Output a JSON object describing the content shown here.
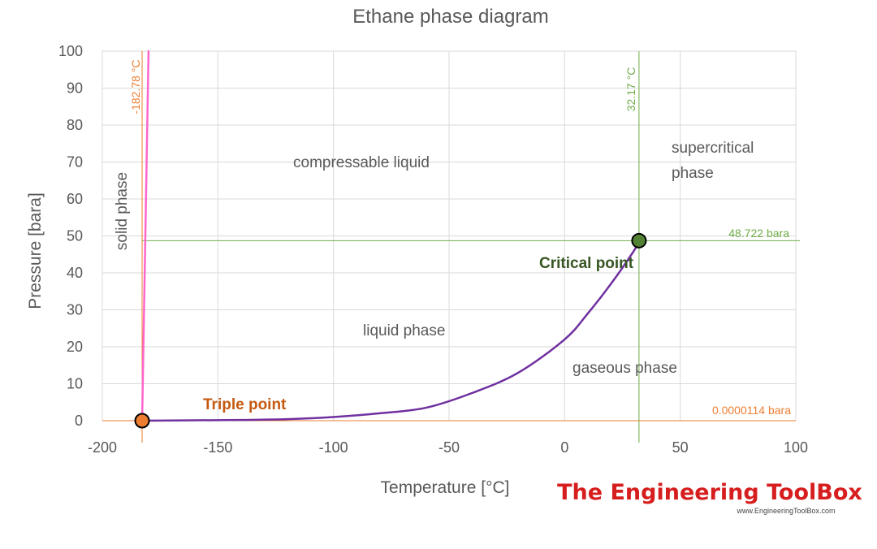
{
  "chart_data": {
    "type": "line",
    "title": "Ethane phase diagram",
    "xlabel": "Temperature [°C]",
    "ylabel": "Pressure [bara]",
    "xlim": [
      -200,
      100
    ],
    "ylim": [
      0,
      100
    ],
    "grid": true,
    "x_ticks": [
      -200,
      -150,
      -100,
      -50,
      0,
      50,
      100
    ],
    "y_ticks": [
      0,
      10,
      20,
      30,
      40,
      50,
      60,
      70,
      80,
      90,
      100
    ],
    "x_tick_labels": [
      "-200",
      "-150",
      "-100",
      "-50",
      "0",
      "50",
      "100"
    ],
    "y_tick_labels": [
      "0",
      "10",
      "20",
      "30",
      "40",
      "50",
      "60",
      "70",
      "80",
      "90",
      "100"
    ],
    "series": [
      {
        "color": "#7030a0",
        "x": [
          -182.78,
          -160,
          -140,
          -120,
          -100,
          -80,
          -60,
          -40,
          -20,
          0,
          10,
          20,
          30,
          32.17
        ],
        "y": [
          0,
          0.1,
          0.2,
          0.4,
          1,
          2,
          3.5,
          7.5,
          13,
          22,
          29,
          37,
          46,
          48.722
        ]
      },
      {
        "color": "#ff66cc",
        "x": [
          -182.78,
          -180
        ],
        "y": [
          0,
          100
        ]
      }
    ],
    "reference_lines": [
      {
        "orientation": "vertical",
        "value": -182.78,
        "label": "-182.78 °C",
        "color": "#ed7d31"
      },
      {
        "orientation": "vertical",
        "value": 32.17,
        "label": "32.17 °C",
        "color": "#70ad47"
      },
      {
        "orientation": "horizontal",
        "value": 48.722,
        "label": "48.722 bara",
        "color": "#70ad47"
      },
      {
        "orientation": "horizontal",
        "value": 1.14e-05,
        "label": "0.0000114 bara",
        "color": "#ed7d31"
      }
    ],
    "points": [
      {
        "label": "Triple point",
        "x": -182.78,
        "y": 1.14e-05,
        "color": "#ed7d31"
      },
      {
        "label": "Critical point",
        "x": 32.17,
        "y": 48.722,
        "color": "#548235"
      }
    ],
    "regions": [
      {
        "label": "solid phase",
        "rotated": true
      },
      {
        "label": "compressable liquid",
        "rotated": false
      },
      {
        "label": "supercritical phase",
        "rotated": false
      },
      {
        "label": "liquid phase",
        "rotated": false
      },
      {
        "label": "gaseous phase",
        "rotated": false
      }
    ]
  },
  "branding": {
    "name": "The Engineering ToolBox",
    "url": "www.EngineeringToolBox.com"
  }
}
